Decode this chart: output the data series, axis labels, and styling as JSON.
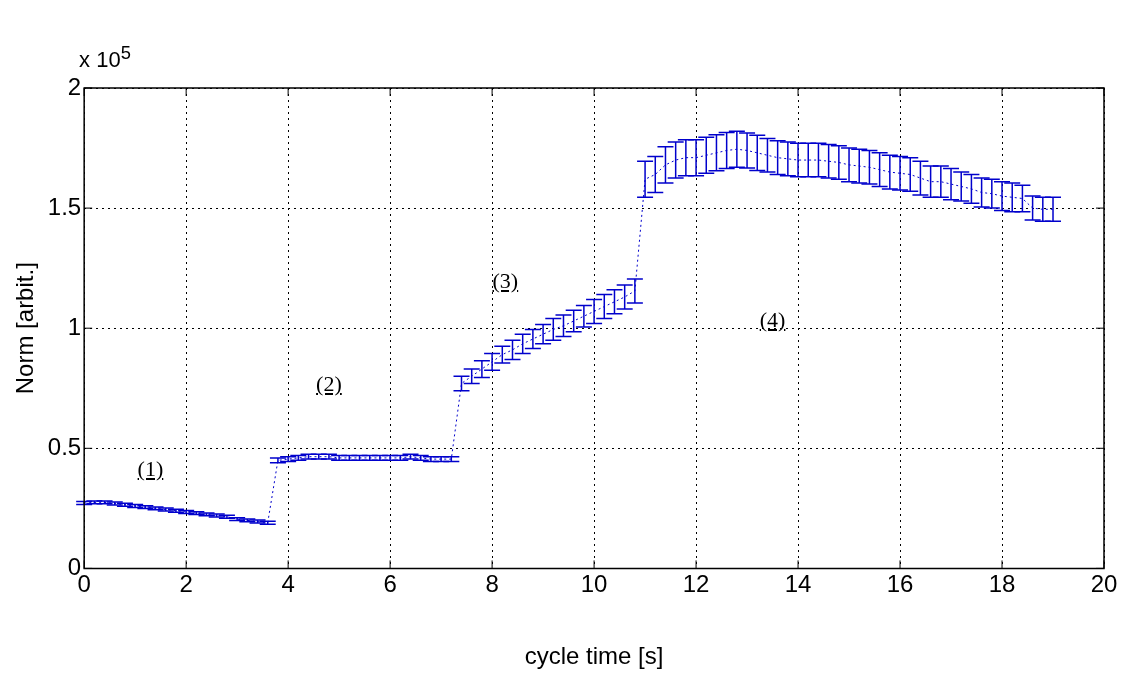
{
  "chart_data": {
    "type": "line",
    "xlabel": "cycle time [s]",
    "ylabel": "Norm [arbit.]",
    "xlim": [
      0,
      20
    ],
    "xticks": [
      0,
      2,
      4,
      6,
      8,
      10,
      12,
      14,
      16,
      18,
      20
    ],
    "ylim": [
      0,
      2
    ],
    "yticks": [
      0,
      0.5,
      1,
      1.5,
      2
    ],
    "grid": true,
    "legend": false,
    "marker": "none",
    "line_style": "dotted",
    "annotations": [
      "x 10$^{5}$",
      "(1)",
      "(2)",
      "(3)",
      "(4)"
    ],
    "series": [
      {
        "color": "#0000cc",
        "x": [
          0,
          0.2,
          0.4,
          0.6,
          0.8,
          1,
          1.2,
          1.4,
          1.6,
          1.8,
          2,
          2.2,
          2.4,
          2.6,
          2.8,
          3,
          3.2,
          3.4,
          3.6,
          3.8,
          4,
          4.2,
          4.4,
          4.6,
          4.8,
          5,
          5.2,
          5.4,
          5.6,
          5.8,
          6,
          6.2,
          6.4,
          6.6,
          6.8,
          7,
          7.2,
          7.4,
          7.6,
          7.8,
          8,
          8.2,
          8.4,
          8.6,
          8.8,
          9,
          9.2,
          9.4,
          9.6,
          9.8,
          10,
          10.2,
          10.4,
          10.6,
          10.8,
          11,
          11.2,
          11.4,
          11.6,
          11.8,
          12,
          12.2,
          12.4,
          12.6,
          12.8,
          13,
          13.2,
          13.4,
          13.6,
          13.8,
          14,
          14.2,
          14.4,
          14.6,
          14.8,
          15,
          15.2,
          15.4,
          15.6,
          15.8,
          16,
          16.2,
          16.4,
          16.6,
          16.8,
          17,
          17.2,
          17.4,
          17.6,
          17.8,
          18,
          18.2,
          18.4,
          18.6,
          18.8,
          19
        ],
        "values": [
          0.272,
          0.275,
          0.275,
          0.27,
          0.265,
          0.26,
          0.255,
          0.25,
          0.245,
          0.24,
          0.235,
          0.23,
          0.225,
          0.22,
          0.215,
          0.205,
          0.2,
          0.195,
          0.19,
          0.45,
          0.455,
          0.46,
          0.465,
          0.465,
          0.465,
          0.46,
          0.46,
          0.46,
          0.46,
          0.46,
          0.46,
          0.46,
          0.465,
          0.46,
          0.455,
          0.455,
          0.455,
          0.77,
          0.8,
          0.83,
          0.86,
          0.89,
          0.91,
          0.935,
          0.955,
          0.975,
          0.995,
          1.01,
          1.03,
          1.05,
          1.07,
          1.09,
          1.11,
          1.13,
          1.155,
          1.62,
          1.64,
          1.68,
          1.7,
          1.71,
          1.71,
          1.72,
          1.73,
          1.74,
          1.745,
          1.74,
          1.73,
          1.72,
          1.71,
          1.705,
          1.7,
          1.7,
          1.7,
          1.695,
          1.69,
          1.68,
          1.675,
          1.67,
          1.66,
          1.65,
          1.645,
          1.64,
          1.625,
          1.61,
          1.61,
          1.6,
          1.59,
          1.58,
          1.565,
          1.56,
          1.55,
          1.545,
          1.54,
          1.5,
          1.495,
          1.495
        ],
        "errors": [
          0.006,
          0.006,
          0.006,
          0.006,
          0.006,
          0.006,
          0.006,
          0.006,
          0.006,
          0.006,
          0.006,
          0.006,
          0.006,
          0.006,
          0.006,
          0.006,
          0.006,
          0.006,
          0.006,
          0.01,
          0.01,
          0.01,
          0.01,
          0.01,
          0.01,
          0.01,
          0.01,
          0.01,
          0.01,
          0.01,
          0.01,
          0.01,
          0.01,
          0.01,
          0.01,
          0.01,
          0.01,
          0.03,
          0.03,
          0.035,
          0.035,
          0.035,
          0.04,
          0.04,
          0.04,
          0.04,
          0.045,
          0.045,
          0.045,
          0.045,
          0.05,
          0.05,
          0.05,
          0.05,
          0.05,
          0.075,
          0.075,
          0.075,
          0.075,
          0.075,
          0.075,
          0.075,
          0.075,
          0.075,
          0.075,
          0.073,
          0.073,
          0.07,
          0.07,
          0.07,
          0.07,
          0.07,
          0.07,
          0.07,
          0.07,
          0.07,
          0.07,
          0.07,
          0.07,
          0.07,
          0.07,
          0.07,
          0.07,
          0.065,
          0.065,
          0.065,
          0.06,
          0.06,
          0.06,
          0.06,
          0.06,
          0.06,
          0.055,
          0.05,
          0.05,
          0.05
        ]
      }
    ]
  }
}
